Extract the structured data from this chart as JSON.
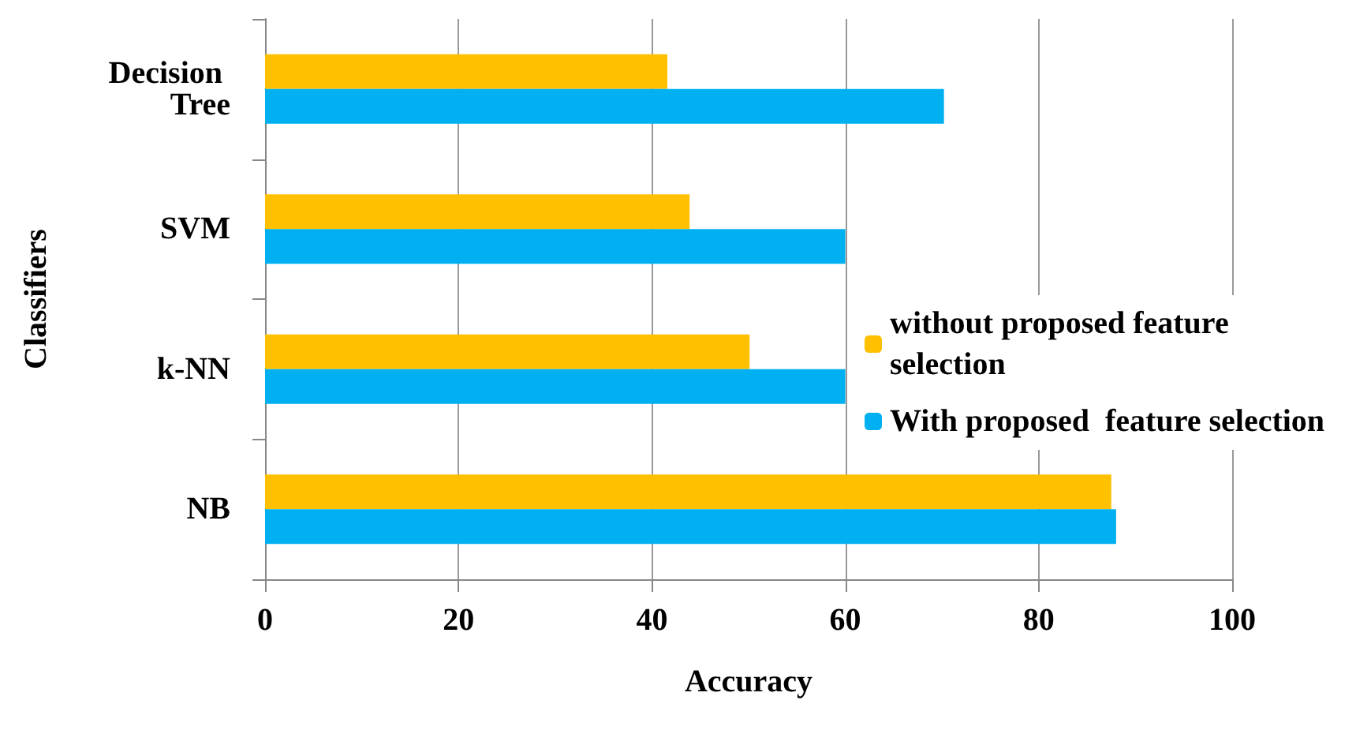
{
  "chart_data": {
    "type": "bar",
    "orientation": "horizontal",
    "xlabel": "Accuracy",
    "ylabel": "Classifiers",
    "categories": [
      "Decision Tree",
      "SVM",
      "k-NN",
      "NB"
    ],
    "series": [
      {
        "name": "without proposed feature selection",
        "color": "#ffc000",
        "values": [
          41.6,
          43.9,
          50.1,
          87.5
        ]
      },
      {
        "name": "With proposed  feature selection",
        "color": "#00b0f0",
        "values": [
          70.2,
          60,
          60,
          88
        ]
      }
    ],
    "xlim": [
      0,
      100
    ],
    "xticks": [
      0,
      20,
      40,
      60,
      80,
      100
    ],
    "grid": "x",
    "legend": "right"
  }
}
